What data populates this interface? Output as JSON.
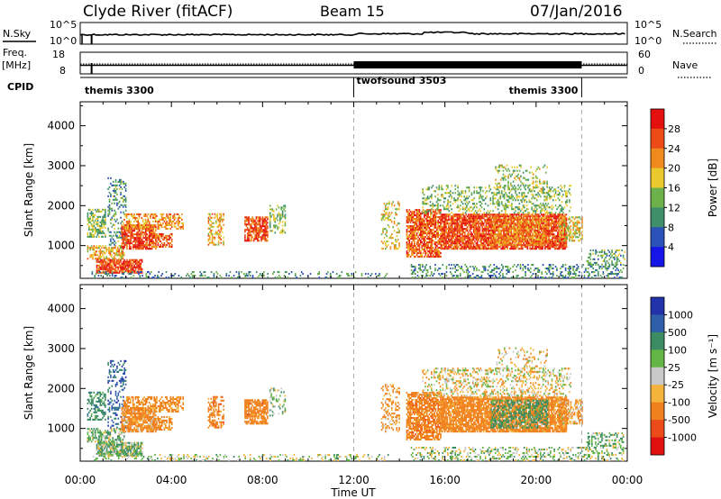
{
  "header": {
    "station": "Clyde River (fitACF)",
    "beam": "Beam 15",
    "date": "07/Jan/2016"
  },
  "labels": {
    "nsky": "N.Sky",
    "nsearch": "N.Search",
    "freq": "Freq.",
    "freq_unit": "[MHz]",
    "nave": "Nave",
    "cpid": "CPID",
    "nsky_top": "10^5",
    "nsky_bottom": "10^0",
    "nsearch_top": "10^5",
    "nsearch_bottom": "10^0",
    "freq_top": "18",
    "freq_bottom": "8",
    "nave_top": "60",
    "nave_bottom": "0"
  },
  "cpid_segments": [
    {
      "name": "themis 3300",
      "start_hour": 0,
      "end_hour": 12
    },
    {
      "name": "twofsound 3503",
      "start_hour": 12,
      "end_hour": 22
    },
    {
      "name": "themis 3300",
      "start_hour": 22,
      "end_hour": 24
    }
  ],
  "chart_data": [
    {
      "type": "heatmap",
      "quantity": "Power",
      "ylabel": "Slant Range [km]",
      "colorbar_label": "Power [dB]",
      "x_range_hours": [
        0,
        24
      ],
      "ylim": [
        180,
        4600
      ],
      "yticks": [
        1000,
        2000,
        3000,
        4000
      ],
      "colorbar_ticks": [
        "4",
        "8",
        "12",
        "16",
        "20",
        "24",
        "28"
      ],
      "colors": [
        "#1515e8",
        "#2a52b8",
        "#3f8f6a",
        "#6cb14a",
        "#e9c92d",
        "#f08a1c",
        "#ec4a17",
        "#e41010"
      ]
    },
    {
      "type": "heatmap",
      "quantity": "Velocity",
      "ylabel": "Slant Range [km]",
      "colorbar_label": "Velocity [m s⁻¹]",
      "x_range_hours": [
        0,
        24
      ],
      "ylim": [
        180,
        4600
      ],
      "yticks": [
        1000,
        2000,
        3000,
        4000
      ],
      "colorbar_ticks": [
        "1000",
        "500",
        "100",
        "25",
        "-25",
        "-100",
        "-500",
        "-1000"
      ],
      "colors": [
        "#2233aa",
        "#2f5fa8",
        "#3b8c62",
        "#63b545",
        "#c9c9c9",
        "#f4b33a",
        "#f0801c",
        "#eb4b18",
        "#e01010"
      ]
    }
  ],
  "xaxis": {
    "title": "Time UT",
    "ticks": [
      "00:00",
      "04:00",
      "08:00",
      "12:00",
      "16:00",
      "20:00",
      "00:00"
    ],
    "tick_hours": [
      0,
      4,
      8,
      12,
      16,
      20,
      24
    ],
    "dashed_hours": [
      12,
      22
    ]
  },
  "scatter_regions": [
    {
      "t0": 0.3,
      "t1": 1.1,
      "r0": 1200,
      "r1": 1900,
      "power": 14,
      "vel": 300,
      "d": 0.55
    },
    {
      "t0": 0.7,
      "t1": 2.7,
      "r0": 300,
      "r1": 650,
      "power": 27,
      "vel": 60,
      "d": 0.85
    },
    {
      "t0": 0.3,
      "t1": 1.9,
      "r0": 650,
      "r1": 1000,
      "power": 20,
      "vel": 80,
      "d": 0.55
    },
    {
      "t0": 1.2,
      "t1": 2.0,
      "r0": 1000,
      "r1": 2700,
      "power": 11,
      "vel": 700,
      "d": 0.25
    },
    {
      "t0": 1.8,
      "t1": 3.3,
      "r0": 900,
      "r1": 1500,
      "power": 26,
      "vel": -200,
      "d": 0.8
    },
    {
      "t0": 1.9,
      "t1": 4.5,
      "r0": 1400,
      "r1": 1800,
      "power": 22,
      "vel": -250,
      "d": 0.55
    },
    {
      "t0": 3.0,
      "t1": 4.0,
      "r0": 950,
      "r1": 1300,
      "power": 25,
      "vel": -180,
      "d": 0.6
    },
    {
      "t0": 5.6,
      "t1": 6.3,
      "r0": 1000,
      "r1": 1800,
      "power": 20,
      "vel": -300,
      "d": 0.45
    },
    {
      "t0": 7.2,
      "t1": 8.2,
      "r0": 1100,
      "r1": 1700,
      "power": 26,
      "vel": -280,
      "d": 0.75
    },
    {
      "t0": 8.3,
      "t1": 9.0,
      "r0": 1300,
      "r1": 2000,
      "power": 14,
      "vel": 40,
      "d": 0.35
    },
    {
      "t0": 0.5,
      "t1": 13.5,
      "r0": 180,
      "r1": 320,
      "power": 10,
      "vel": 20,
      "d": 0.22
    },
    {
      "t0": 13.2,
      "t1": 14.0,
      "r0": 900,
      "r1": 2100,
      "power": 18,
      "vel": -150,
      "d": 0.3
    },
    {
      "t0": 14.3,
      "t1": 15.8,
      "r0": 700,
      "r1": 1900,
      "power": 25,
      "vel": -300,
      "d": 0.75
    },
    {
      "t0": 15.8,
      "t1": 21.3,
      "r0": 900,
      "r1": 1800,
      "power": 26,
      "vel": -250,
      "d": 0.85
    },
    {
      "t0": 18.0,
      "t1": 20.5,
      "r0": 1000,
      "r1": 1700,
      "power": 22,
      "vel": 200,
      "d": 0.5
    },
    {
      "t0": 15.0,
      "t1": 21.5,
      "r0": 1800,
      "r1": 2500,
      "power": 14,
      "vel": -30,
      "d": 0.3
    },
    {
      "t0": 18.2,
      "t1": 20.5,
      "r0": 2400,
      "r1": 3000,
      "power": 16,
      "vel": -60,
      "d": 0.2
    },
    {
      "t0": 14.5,
      "t1": 23.8,
      "r0": 180,
      "r1": 500,
      "power": 10,
      "vel": 30,
      "d": 0.3
    },
    {
      "t0": 22.2,
      "t1": 23.9,
      "r0": 500,
      "r1": 900,
      "power": 12,
      "vel": 90,
      "d": 0.35
    },
    {
      "t0": 21.0,
      "t1": 22.0,
      "r0": 1100,
      "r1": 1700,
      "power": 18,
      "vel": -120,
      "d": 0.5
    }
  ]
}
